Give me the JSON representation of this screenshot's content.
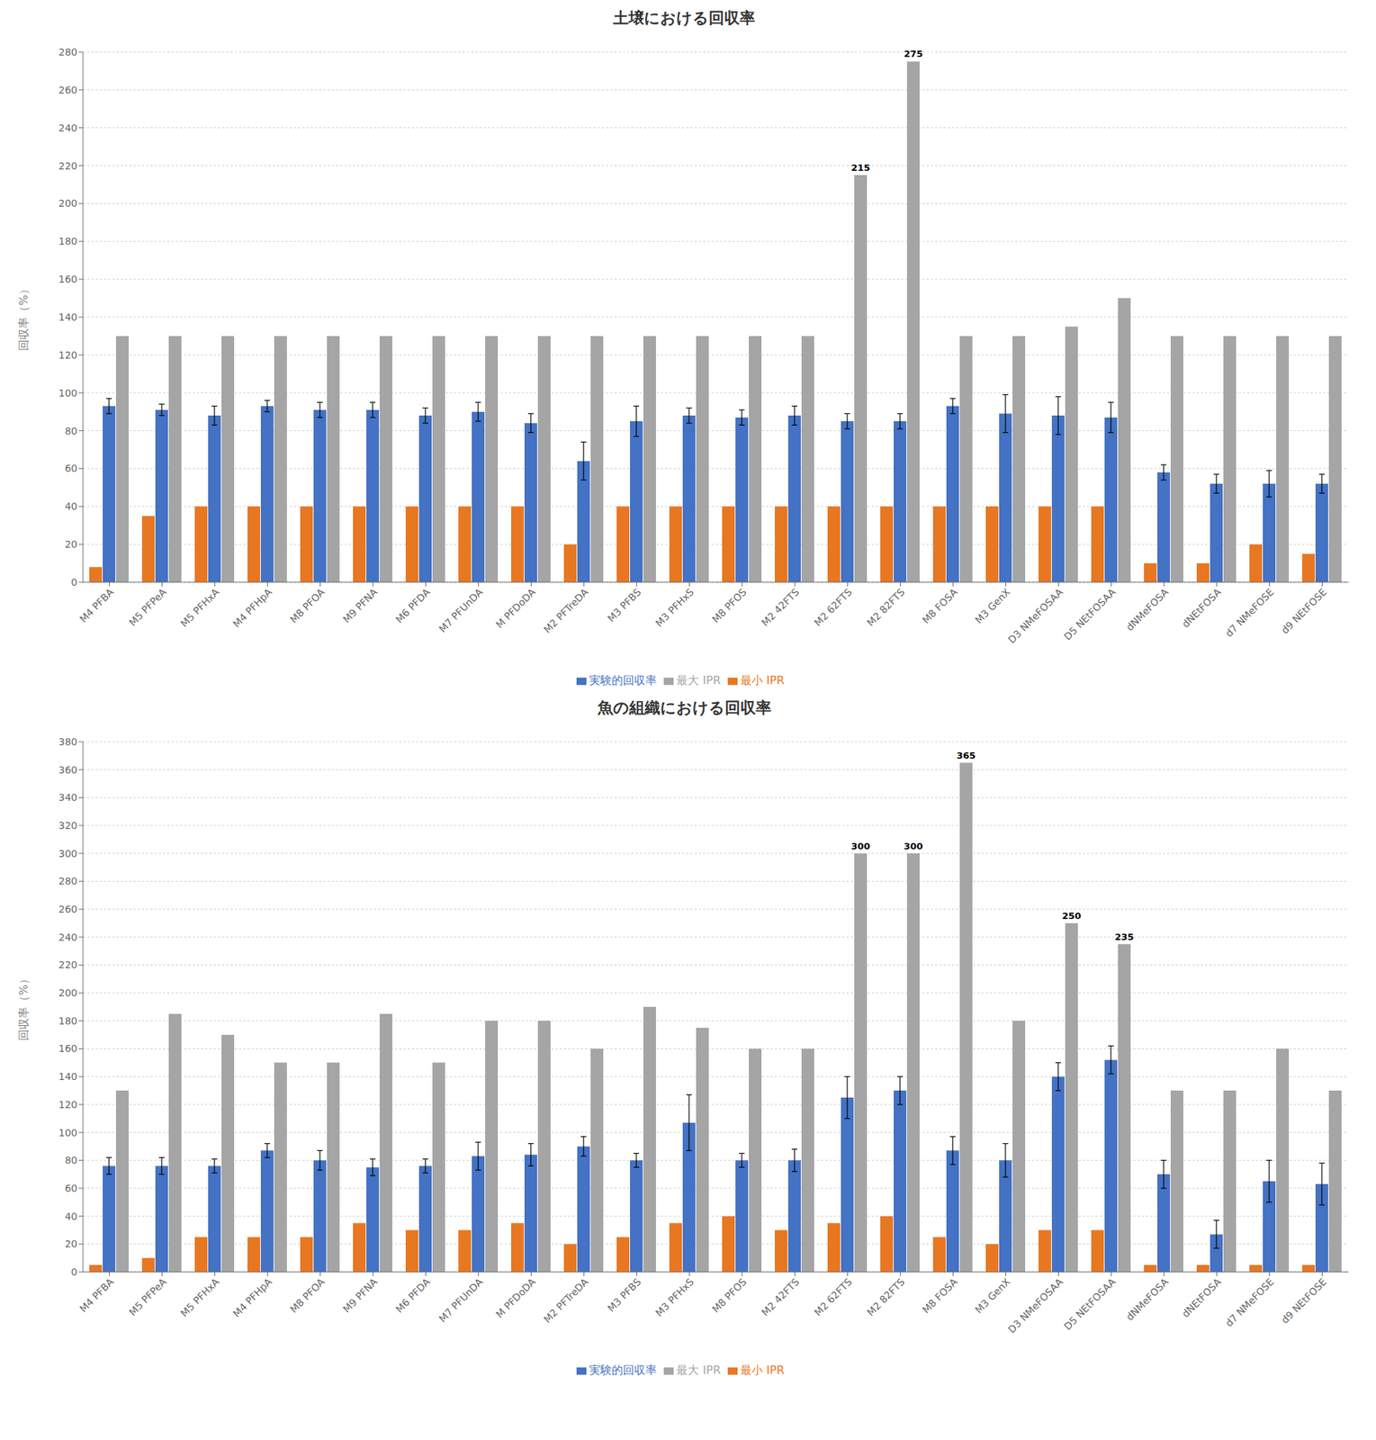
{
  "chart_data": [
    {
      "type": "bar",
      "title": "土壌における回収率",
      "y_label": "回収率（%）",
      "categories": [
        "M4 PFBA",
        "M5 PFPeA",
        "M5 PFHxA",
        "M4 PFHpA",
        "M8 PFOA",
        "M9 PFNA",
        "M6 PFDA",
        "M7 PFUnDA",
        "M PFDoDA",
        "M2 PFTreDA",
        "M3 PFBS",
        "M3 PFHxS",
        "M8 PFOS",
        "M2 42FTS",
        "M2 62FTS",
        "M2 82FTS",
        "M8 FOSA",
        "M3 GenX",
        "D3 NMeFOSAA",
        "D5 NEtFOSAA",
        "dNMeFOSA",
        "dNEtFOSA",
        "d7 NMeFOSE",
        "d9 NEtFOSE"
      ],
      "series": [
        {
          "name": "最小 IPR",
          "color": "#E87722",
          "values": [
            8,
            35,
            40,
            40,
            40,
            40,
            40,
            40,
            40,
            20,
            40,
            40,
            40,
            40,
            40,
            40,
            40,
            40,
            40,
            40,
            10,
            10,
            20,
            15
          ]
        },
        {
          "name": "実験的回収率",
          "color": "#4472C4",
          "values": [
            93,
            91,
            88,
            93,
            91,
            91,
            88,
            90,
            84,
            64,
            85,
            88,
            87,
            88,
            85,
            85,
            93,
            89,
            88,
            87,
            58,
            52,
            52,
            52
          ],
          "error": [
            4,
            3,
            5,
            3,
            4,
            4,
            4,
            5,
            5,
            10,
            8,
            4,
            4,
            5,
            4,
            4,
            4,
            10,
            10,
            8,
            4,
            5,
            7,
            5
          ]
        },
        {
          "name": "最大 IPR",
          "color": "#A5A5A5",
          "values": [
            130,
            130,
            130,
            130,
            130,
            130,
            130,
            130,
            130,
            130,
            130,
            130,
            130,
            130,
            215,
            275,
            130,
            130,
            135,
            150,
            130,
            130,
            130,
            130
          ]
        }
      ],
      "ylim": [
        0,
        280
      ],
      "yticks": [
        0,
        20,
        40,
        60,
        80,
        100,
        120,
        140,
        160,
        180,
        200,
        220,
        240,
        260,
        280
      ],
      "grid": true,
      "legend": "bottom",
      "annotations": [
        {
          "category": "M2 62FTS",
          "series": "最大 IPR",
          "text": "215"
        },
        {
          "category": "M2 82FTS",
          "series": "最大 IPR",
          "text": "275"
        }
      ]
    },
    {
      "type": "bar",
      "title": "魚の組織における回収率",
      "y_label": "回収率（%）",
      "categories": [
        "M4 PFBA",
        "M5 PFPeA",
        "M5 PFHxA",
        "M4 PFHpA",
        "M8 PFOA",
        "M9 PFNA",
        "M6 PFDA",
        "M7 PFUnDA",
        "M PFDoDA",
        "M2 PFTreDA",
        "M3 PFBS",
        "M3 PFHxS",
        "M8 PFOS",
        "M2 42FTS",
        "M2 62FTS",
        "M2 82FTS",
        "M8 FOSA",
        "M3 GenX",
        "D3 NMeFOSAA",
        "D5 NEtFOSAA",
        "dNMeFOSA",
        "dNEtFOSA",
        "d7 NMeFOSE",
        "d9 NEtFOSE"
      ],
      "series": [
        {
          "name": "最小 IPR",
          "color": "#E87722",
          "values": [
            5,
            10,
            25,
            25,
            25,
            35,
            30,
            30,
            35,
            20,
            25,
            35,
            40,
            30,
            35,
            40,
            25,
            20,
            30,
            30,
            5,
            5,
            5,
            5
          ]
        },
        {
          "name": "実験的回収率",
          "color": "#4472C4",
          "values": [
            76,
            76,
            76,
            87,
            80,
            75,
            76,
            83,
            84,
            90,
            80,
            107,
            80,
            80,
            125,
            130,
            87,
            80,
            140,
            152,
            70,
            27,
            65,
            63
          ],
          "error": [
            6,
            6,
            5,
            5,
            7,
            6,
            5,
            10,
            8,
            7,
            5,
            20,
            5,
            8,
            15,
            10,
            10,
            12,
            10,
            10,
            10,
            10,
            15,
            15
          ]
        },
        {
          "name": "最大 IPR",
          "color": "#A5A5A5",
          "values": [
            130,
            185,
            170,
            150,
            150,
            185,
            150,
            180,
            180,
            160,
            190,
            175,
            160,
            160,
            300,
            300,
            365,
            180,
            250,
            235,
            130,
            130,
            160,
            130
          ]
        }
      ],
      "ylim": [
        0,
        380
      ],
      "yticks": [
        0,
        20,
        40,
        60,
        80,
        100,
        120,
        140,
        160,
        180,
        200,
        220,
        240,
        260,
        280,
        300,
        320,
        340,
        360,
        380
      ],
      "grid": true,
      "legend": "bottom",
      "annotations": [
        {
          "category": "M2 62FTS",
          "series": "最大 IPR",
          "text": "300"
        },
        {
          "category": "M2 82FTS",
          "series": "最大 IPR",
          "text": "300"
        },
        {
          "category": "M8 FOSA",
          "series": "最大 IPR",
          "text": "365"
        },
        {
          "category": "D3 NMeFOSAA",
          "series": "最大 IPR",
          "text": "250"
        },
        {
          "category": "D5 NEtFOSAA",
          "series": "最大 IPR",
          "text": "235"
        }
      ]
    }
  ]
}
